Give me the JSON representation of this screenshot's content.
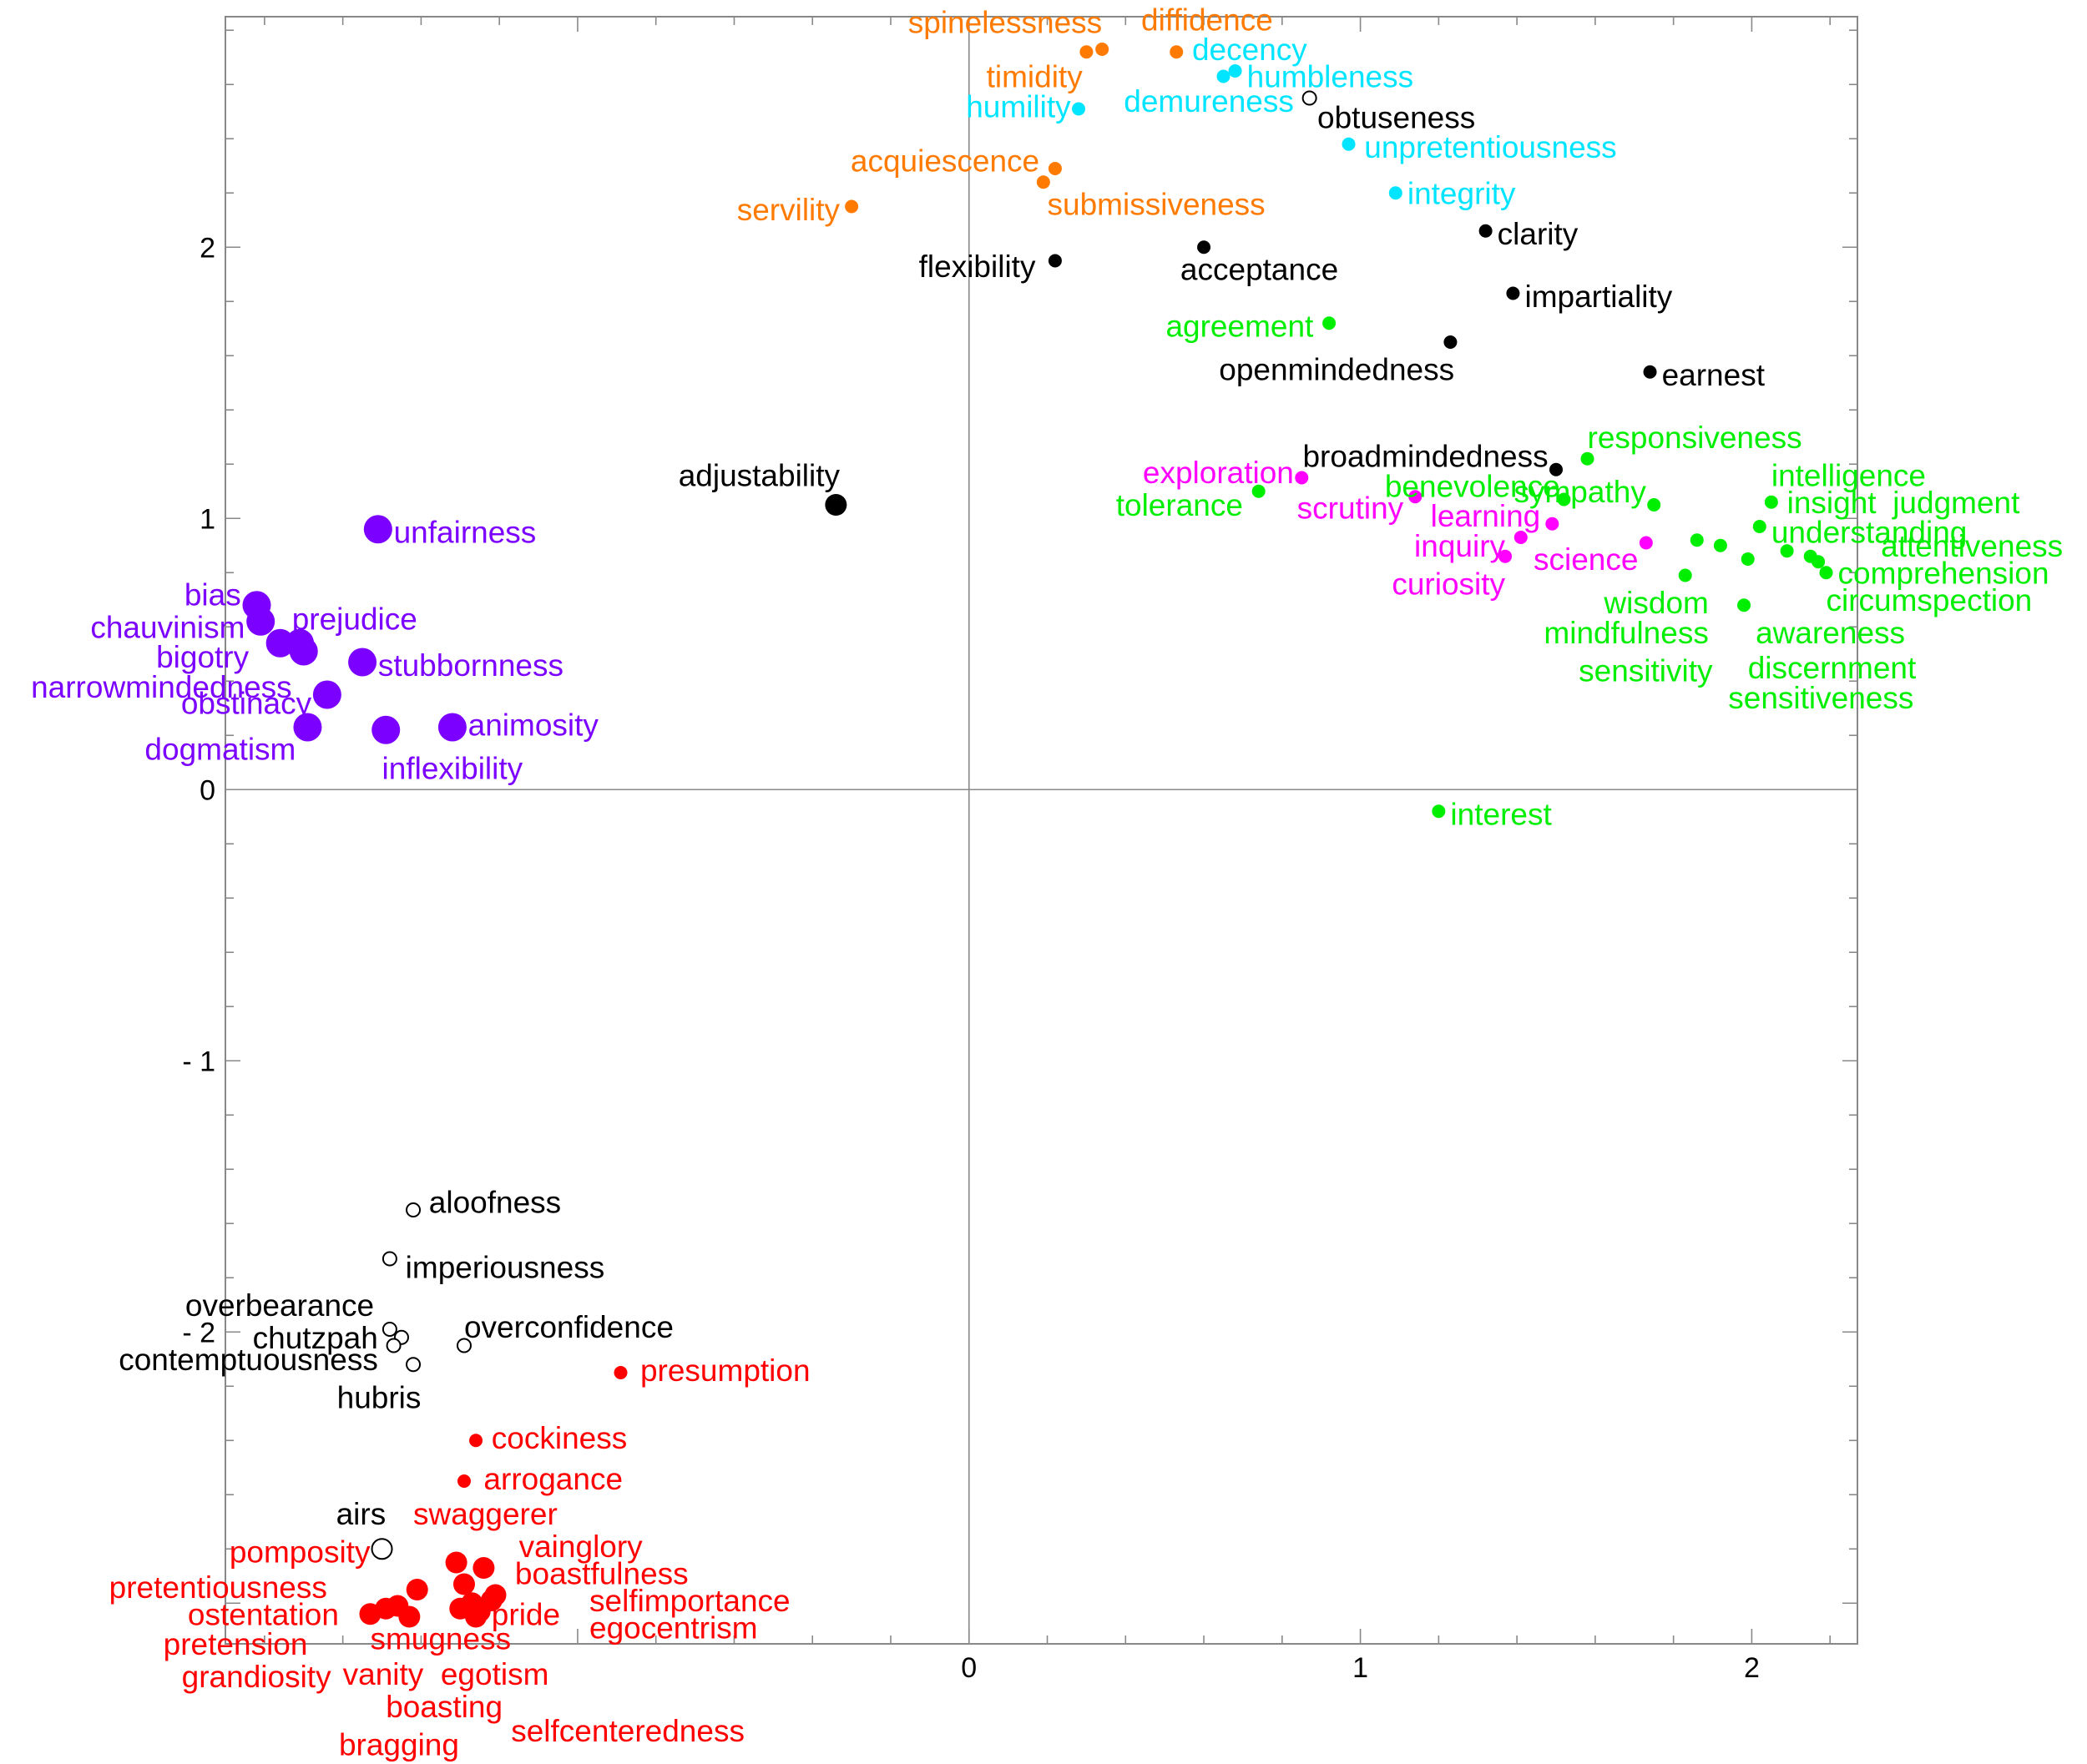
{
  "chart_data": {
    "type": "scatter",
    "title": "",
    "xlabel": "",
    "ylabel": "",
    "xlim": [
      -1.9,
      2.27
    ],
    "ylim": [
      -3.15,
      2.85
    ],
    "x_ticks": [
      {
        "value": 0,
        "label": "0"
      },
      {
        "value": 1,
        "label": "1"
      },
      {
        "value": 2,
        "label": "2"
      }
    ],
    "y_ticks": [
      {
        "value": -2,
        "label": "- 2"
      },
      {
        "value": -1,
        "label": "- 1"
      },
      {
        "value": 0,
        "label": "0"
      },
      {
        "value": 1,
        "label": "1"
      },
      {
        "value": 2,
        "label": "2"
      }
    ],
    "zero_lines": true,
    "grid": false,
    "colors": {
      "purple": "#7b00ff",
      "orange": "#ff7a00",
      "cyan": "#00e5ff",
      "black": "#000000",
      "green": "#00ee00",
      "magenta": "#ff00ff",
      "red": "#ff0000"
    },
    "points": [
      {
        "label": "spinelessness",
        "x": 0.3,
        "y": 2.72,
        "color": "orange",
        "marker": "small",
        "anchor": "end",
        "lx": 0.34,
        "ly": 2.83
      },
      {
        "label": "diffidence",
        "x": 0.53,
        "y": 2.72,
        "color": "orange",
        "marker": "small",
        "anchor": "start",
        "lx": 0.44,
        "ly": 2.84
      },
      {
        "label": "timidity",
        "x": 0.34,
        "y": 2.73,
        "color": "orange",
        "marker": "small",
        "anchor": "end",
        "lx": 0.29,
        "ly": 2.63
      },
      {
        "label": "decency",
        "x": 0.65,
        "y": 2.63,
        "color": "cyan",
        "marker": "small",
        "anchor": "start",
        "lx": 0.57,
        "ly": 2.73
      },
      {
        "label": "humbleness",
        "x": 0.68,
        "y": 2.65,
        "color": "cyan",
        "marker": "small",
        "anchor": "start",
        "lx": 0.71,
        "ly": 2.63
      },
      {
        "label": "humility",
        "x": 0.28,
        "y": 2.51,
        "color": "cyan",
        "marker": "small",
        "anchor": "end",
        "lx": 0.26,
        "ly": 2.52
      },
      {
        "label": "demureness",
        "x": 0.87,
        "y": 2.55,
        "color": "cyan",
        "marker": "open",
        "anchor": "end",
        "lx": 0.83,
        "ly": 2.54
      },
      {
        "label": "obtuseness",
        "x": 0.87,
        "y": 2.55,
        "color": "black",
        "marker": "none",
        "anchor": "start",
        "lx": 0.89,
        "ly": 2.48
      },
      {
        "label": "unpretentiousness",
        "x": 0.97,
        "y": 2.38,
        "color": "cyan",
        "marker": "small",
        "anchor": "start",
        "lx": 1.01,
        "ly": 2.37
      },
      {
        "label": "acquiescence",
        "x": 0.22,
        "y": 2.29,
        "color": "orange",
        "marker": "small",
        "anchor": "end",
        "lx": 0.18,
        "ly": 2.32
      },
      {
        "label": "submissiveness",
        "x": 0.19,
        "y": 2.24,
        "color": "orange",
        "marker": "small",
        "anchor": "start",
        "lx": 0.2,
        "ly": 2.16
      },
      {
        "label": "integrity",
        "x": 1.09,
        "y": 2.2,
        "color": "cyan",
        "marker": "small",
        "anchor": "start",
        "lx": 1.12,
        "ly": 2.2
      },
      {
        "label": "servility",
        "x": -0.3,
        "y": 2.15,
        "color": "orange",
        "marker": "small",
        "anchor": "end",
        "lx": -0.33,
        "ly": 2.14
      },
      {
        "label": "clarity",
        "x": 1.32,
        "y": 2.06,
        "color": "black",
        "marker": "small",
        "anchor": "start",
        "lx": 1.35,
        "ly": 2.05
      },
      {
        "label": "acceptance",
        "x": 0.6,
        "y": 2.0,
        "color": "black",
        "marker": "small",
        "anchor": "start",
        "lx": 0.54,
        "ly": 1.92
      },
      {
        "label": "flexibility",
        "x": 0.22,
        "y": 1.95,
        "color": "black",
        "marker": "small",
        "anchor": "end",
        "lx": 0.17,
        "ly": 1.93
      },
      {
        "label": "impartiality",
        "x": 1.39,
        "y": 1.83,
        "color": "black",
        "marker": "small",
        "anchor": "start",
        "lx": 1.42,
        "ly": 1.82
      },
      {
        "label": "agreement",
        "x": 0.92,
        "y": 1.72,
        "color": "green",
        "marker": "small",
        "anchor": "end",
        "lx": 0.88,
        "ly": 1.71
      },
      {
        "label": "openmindedness",
        "x": 1.23,
        "y": 1.65,
        "color": "black",
        "marker": "small",
        "anchor": "end",
        "lx": 1.24,
        "ly": 1.55
      },
      {
        "label": "earnest",
        "x": 1.74,
        "y": 1.54,
        "color": "black",
        "marker": "small",
        "anchor": "start",
        "lx": 1.77,
        "ly": 1.53
      },
      {
        "label": "broadmindedness",
        "x": 1.5,
        "y": 1.18,
        "color": "black",
        "marker": "small",
        "anchor": "end",
        "lx": 1.48,
        "ly": 1.23
      },
      {
        "label": "responsiveness",
        "x": 1.58,
        "y": 1.22,
        "color": "green",
        "marker": "small",
        "anchor": "start",
        "lx": 1.58,
        "ly": 1.3
      },
      {
        "label": "exploration",
        "x": 0.85,
        "y": 1.15,
        "color": "magenta",
        "marker": "small",
        "anchor": "end",
        "lx": 0.83,
        "ly": 1.17
      },
      {
        "label": "benevolence",
        "x": 1.52,
        "y": 1.07,
        "color": "green",
        "marker": "small",
        "anchor": "end",
        "lx": 1.51,
        "ly": 1.12
      },
      {
        "label": "sympathy",
        "x": 1.75,
        "y": 1.05,
        "color": "green",
        "marker": "small",
        "anchor": "end",
        "lx": 1.73,
        "ly": 1.1
      },
      {
        "label": "intelligence",
        "x": 2.05,
        "y": 1.06,
        "color": "green",
        "marker": "small",
        "anchor": "start",
        "lx": 2.05,
        "ly": 1.16
      },
      {
        "label": "tolerance",
        "x": 0.74,
        "y": 1.1,
        "color": "green",
        "marker": "small",
        "anchor": "end",
        "lx": 0.7,
        "ly": 1.05
      },
      {
        "label": "scrutiny",
        "x": 1.14,
        "y": 1.08,
        "color": "magenta",
        "marker": "small",
        "anchor": "end",
        "lx": 1.11,
        "ly": 1.04
      },
      {
        "label": "learning",
        "x": 1.49,
        "y": 0.98,
        "color": "magenta",
        "marker": "small",
        "anchor": "end",
        "lx": 1.46,
        "ly": 1.01
      },
      {
        "label": "insight",
        "x": 2.05,
        "y": 1.06,
        "color": "green",
        "marker": "none",
        "anchor": "start",
        "lx": 2.09,
        "ly": 1.06
      },
      {
        "label": "judgment",
        "x": 2.05,
        "y": 1.06,
        "color": "green",
        "marker": "none",
        "anchor": "start",
        "lx": 2.36,
        "ly": 1.06
      },
      {
        "label": "understanding",
        "x": 2.02,
        "y": 0.97,
        "color": "green",
        "marker": "small",
        "anchor": "start",
        "lx": 2.05,
        "ly": 0.95
      },
      {
        "label": "attentiveness",
        "x": 2.15,
        "y": 0.86,
        "color": "green",
        "marker": "small",
        "anchor": "start",
        "lx": 2.33,
        "ly": 0.9
      },
      {
        "label": "inquiry",
        "x": 1.41,
        "y": 0.93,
        "color": "magenta",
        "marker": "small",
        "anchor": "end",
        "lx": 1.37,
        "ly": 0.9
      },
      {
        "label": "science",
        "x": 1.73,
        "y": 0.91,
        "color": "magenta",
        "marker": "small",
        "anchor": "end",
        "lx": 1.71,
        "ly": 0.85
      },
      {
        "label": "curiosity",
        "x": 1.37,
        "y": 0.86,
        "color": "magenta",
        "marker": "small",
        "anchor": "end",
        "lx": 1.37,
        "ly": 0.76
      },
      {
        "label": "comprehension",
        "x": 2.19,
        "y": 0.8,
        "color": "green",
        "marker": "small",
        "anchor": "start",
        "lx": 2.22,
        "ly": 0.8
      },
      {
        "label": "wisdom",
        "x": 1.86,
        "y": 0.92,
        "color": "green",
        "marker": "small",
        "anchor": "end",
        "lx": 1.89,
        "ly": 0.69
      },
      {
        "label": "circumspection",
        "x": 2.17,
        "y": 0.84,
        "color": "green",
        "marker": "small",
        "anchor": "start",
        "lx": 2.19,
        "ly": 0.7
      },
      {
        "label": "mindfulness",
        "x": 1.83,
        "y": 0.79,
        "color": "green",
        "marker": "small",
        "anchor": "end",
        "lx": 1.89,
        "ly": 0.58
      },
      {
        "label": "awareness",
        "x": 1.98,
        "y": 0.68,
        "color": "green",
        "marker": "small",
        "anchor": "start",
        "lx": 2.01,
        "ly": 0.58
      },
      {
        "label": "sensitivity",
        "x": 1.92,
        "y": 0.9,
        "color": "green",
        "marker": "small",
        "anchor": "end",
        "lx": 1.9,
        "ly": 0.44
      },
      {
        "label": "discernment",
        "x": 2.09,
        "y": 0.88,
        "color": "green",
        "marker": "small",
        "anchor": "start",
        "lx": 1.99,
        "ly": 0.45
      },
      {
        "label": "sensitiveness",
        "x": 1.99,
        "y": 0.85,
        "color": "green",
        "marker": "small",
        "anchor": "start",
        "lx": 1.94,
        "ly": 0.34
      },
      {
        "label": "adjustability",
        "x": -0.34,
        "y": 1.05,
        "color": "black",
        "marker": "medium",
        "anchor": "end",
        "lx": -0.33,
        "ly": 1.16
      },
      {
        "label": "unfairness",
        "x": -1.51,
        "y": 0.96,
        "color": "purple",
        "marker": "large",
        "anchor": "start",
        "lx": -1.47,
        "ly": 0.95
      },
      {
        "label": "bias",
        "x": -1.82,
        "y": 0.68,
        "color": "purple",
        "marker": "large",
        "anchor": "end",
        "lx": -1.86,
        "ly": 0.72
      },
      {
        "label": "chauvinism",
        "x": -1.81,
        "y": 0.62,
        "color": "purple",
        "marker": "large",
        "anchor": "end",
        "lx": -1.85,
        "ly": 0.6
      },
      {
        "label": "prejudice",
        "x": -1.71,
        "y": 0.54,
        "color": "purple",
        "marker": "large",
        "anchor": "start",
        "lx": -1.73,
        "ly": 0.63
      },
      {
        "label": "bigotry",
        "x": -1.76,
        "y": 0.54,
        "color": "purple",
        "marker": "large",
        "anchor": "end",
        "lx": -1.84,
        "ly": 0.49
      },
      {
        "label": "narrowmindedness",
        "x": -1.7,
        "y": 0.51,
        "color": "purple",
        "marker": "large",
        "anchor": "end",
        "lx": -1.73,
        "ly": 0.38
      },
      {
        "label": "stubbornness",
        "x": -1.55,
        "y": 0.47,
        "color": "purple",
        "marker": "large",
        "anchor": "start",
        "lx": -1.51,
        "ly": 0.46
      },
      {
        "label": "obstinacy",
        "x": -1.64,
        "y": 0.35,
        "color": "purple",
        "marker": "large",
        "anchor": "end",
        "lx": -1.68,
        "ly": 0.32
      },
      {
        "label": "animosity",
        "x": -1.32,
        "y": 0.23,
        "color": "purple",
        "marker": "large",
        "anchor": "start",
        "lx": -1.28,
        "ly": 0.24
      },
      {
        "label": "dogmatism",
        "x": -1.69,
        "y": 0.23,
        "color": "purple",
        "marker": "large",
        "anchor": "end",
        "lx": -1.72,
        "ly": 0.15
      },
      {
        "label": "inflexibility",
        "x": -1.49,
        "y": 0.22,
        "color": "purple",
        "marker": "large",
        "anchor": "start",
        "lx": -1.5,
        "ly": 0.08
      },
      {
        "label": "interest",
        "x": 1.2,
        "y": -0.08,
        "color": "green",
        "marker": "small",
        "anchor": "start",
        "lx": 1.23,
        "ly": -0.09
      },
      {
        "label": "aloofness",
        "x": -1.42,
        "y": -1.55,
        "color": "black",
        "marker": "open",
        "anchor": "start",
        "lx": -1.38,
        "ly": -1.52
      },
      {
        "label": "imperiousness",
        "x": -1.48,
        "y": -1.73,
        "color": "black",
        "marker": "open",
        "anchor": "start",
        "lx": -1.44,
        "ly": -1.76
      },
      {
        "label": "overbearance",
        "x": -1.45,
        "y": -2.02,
        "color": "black",
        "marker": "open",
        "anchor": "end",
        "lx": -1.52,
        "ly": -1.9
      },
      {
        "label": "chutzpah",
        "x": -1.48,
        "y": -1.99,
        "color": "black",
        "marker": "open",
        "anchor": "end",
        "lx": -1.51,
        "ly": -2.02
      },
      {
        "label": "overconfidence",
        "x": -1.29,
        "y": -2.05,
        "color": "black",
        "marker": "open",
        "anchor": "start",
        "lx": -1.29,
        "ly": -1.98
      },
      {
        "label": "contemptuousness",
        "x": -1.47,
        "y": -2.05,
        "color": "black",
        "marker": "open",
        "anchor": "end",
        "lx": -1.51,
        "ly": -2.1
      },
      {
        "label": "hubris",
        "x": -1.42,
        "y": -2.12,
        "color": "black",
        "marker": "open",
        "anchor": "end",
        "lx": -1.4,
        "ly": -2.24
      },
      {
        "label": "presumption",
        "x": -0.89,
        "y": -2.15,
        "color": "red",
        "marker": "small",
        "anchor": "start",
        "lx": -0.84,
        "ly": -2.14
      },
      {
        "label": "cockiness",
        "x": -1.26,
        "y": -2.4,
        "color": "red",
        "marker": "small",
        "anchor": "start",
        "lx": -1.22,
        "ly": -2.39
      },
      {
        "label": "arrogance",
        "x": -1.29,
        "y": -2.55,
        "color": "red",
        "marker": "small",
        "anchor": "start",
        "lx": -1.24,
        "ly": -2.54
      },
      {
        "label": "airs",
        "x": -1.5,
        "y": -2.8,
        "color": "black",
        "marker": "open-large",
        "anchor": "end",
        "lx": -1.49,
        "ly": -2.67
      },
      {
        "label": "swaggerer",
        "x": -1.31,
        "y": -2.85,
        "color": "red",
        "marker": "medium",
        "anchor": "start",
        "lx": -1.42,
        "ly": -2.67
      },
      {
        "label": "vainglory",
        "x": -1.24,
        "y": -2.87,
        "color": "red",
        "marker": "medium",
        "anchor": "start",
        "lx": -1.15,
        "ly": -2.79
      },
      {
        "label": "pomposity",
        "x": -1.41,
        "y": -2.95,
        "color": "red",
        "marker": "medium",
        "anchor": "end",
        "lx": -1.53,
        "ly": -2.81
      },
      {
        "label": "boastfulness",
        "x": -1.29,
        "y": -2.93,
        "color": "red",
        "marker": "medium",
        "anchor": "start",
        "lx": -1.16,
        "ly": -2.89
      },
      {
        "label": "pretentiousness",
        "x": -1.49,
        "y": -3.02,
        "color": "red",
        "marker": "medium",
        "anchor": "end",
        "lx": -1.64,
        "ly": -2.94
      },
      {
        "label": "selfimportance",
        "x": -1.21,
        "y": -2.97,
        "color": "red",
        "marker": "medium",
        "anchor": "start",
        "lx": -0.97,
        "ly": -2.99
      },
      {
        "label": "ostentation",
        "x": -1.53,
        "y": -3.04,
        "color": "red",
        "marker": "medium",
        "anchor": "end",
        "lx": -1.61,
        "ly": -3.04
      },
      {
        "label": "pride",
        "x": -1.27,
        "y": -3.0,
        "color": "red",
        "marker": "medium",
        "anchor": "start",
        "lx": -1.22,
        "ly": -3.04
      },
      {
        "label": "egocentrism",
        "x": -1.25,
        "y": -3.03,
        "color": "red",
        "marker": "medium",
        "anchor": "start",
        "lx": -0.97,
        "ly": -3.09
      },
      {
        "label": "pretension",
        "x": -1.46,
        "y": -3.01,
        "color": "red",
        "marker": "medium",
        "anchor": "end",
        "lx": -1.69,
        "ly": -3.15
      },
      {
        "label": "smugness",
        "x": -1.43,
        "y": -3.05,
        "color": "red",
        "marker": "medium",
        "anchor": "start",
        "lx": -1.53,
        "ly": -3.13
      },
      {
        "label": "grandiosity",
        "x": -1.3,
        "y": -3.02,
        "color": "red",
        "marker": "medium",
        "anchor": "end",
        "lx": -1.63,
        "ly": -3.27
      },
      {
        "label": "vanity",
        "x": -1.26,
        "y": -3.05,
        "color": "red",
        "marker": "medium",
        "anchor": "start",
        "lx": -1.6,
        "ly": -3.26
      },
      {
        "label": "egotism",
        "x": -1.22,
        "y": -2.99,
        "color": "red",
        "marker": "medium",
        "anchor": "start",
        "lx": -1.35,
        "ly": -3.26
      },
      {
        "label": "boasting",
        "x": -1.28,
        "y": -2.92,
        "color": "red",
        "marker": "none",
        "anchor": "start",
        "lx": -1.49,
        "ly": -3.38
      },
      {
        "label": "selfcenteredness",
        "x": -1.25,
        "y": -2.89,
        "color": "red",
        "marker": "none",
        "anchor": "start",
        "lx": -1.17,
        "ly": -3.47
      },
      {
        "label": "bragging",
        "x": -1.29,
        "y": -2.87,
        "color": "red",
        "marker": "none",
        "anchor": "start",
        "lx": -1.61,
        "ly": -3.52
      }
    ]
  }
}
